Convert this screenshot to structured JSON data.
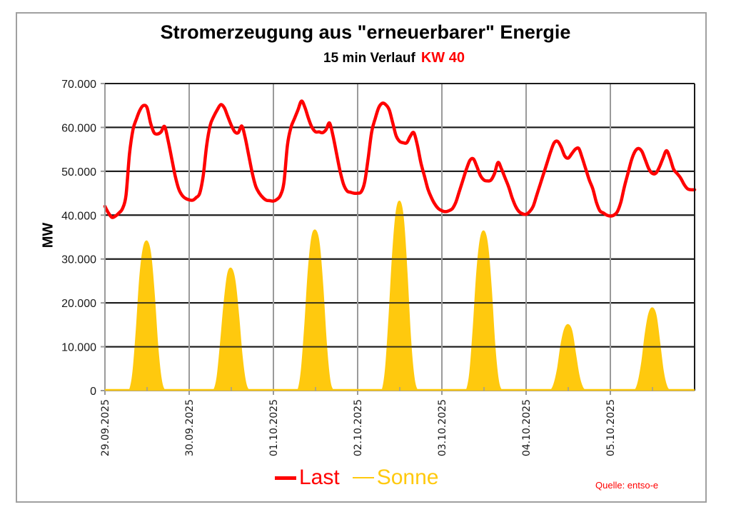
{
  "chart_data": {
    "type": "line",
    "title": "Stromerzeugung aus \"erneuerbarer\" Energie",
    "subtitle": "15 min Verlauf",
    "subtitle_highlight": "KW 40",
    "xlabel": "",
    "ylabel": "MW",
    "ylim": [
      0,
      70000
    ],
    "yticks": [
      0,
      10000,
      20000,
      30000,
      40000,
      50000,
      60000,
      70000
    ],
    "ytick_labels": [
      "0",
      "10.000",
      "20.000",
      "30.000",
      "40.000",
      "50.000",
      "60.000",
      "70.000"
    ],
    "xtick_labels": [
      "29.09.2025",
      "30.09.2025",
      "01.10.2025",
      "02.10.2025",
      "03.10.2025",
      "04.10.2025",
      "05.10.2025"
    ],
    "x_unit": "hours since 29.09.2025 00:00",
    "xlim": [
      0,
      168
    ],
    "grid": true,
    "legend_position": "bottom-center",
    "source_note": "Quelle: entso-e",
    "series": [
      {
        "name": "Last",
        "color": "#ff0000",
        "kind": "line",
        "hourly_values": [
          42000,
          40500,
          39500,
          39800,
          40500,
          41500,
          44500,
          54000,
          59500,
          62000,
          64000,
          65000,
          64500,
          61000,
          58800,
          58500,
          59000,
          60200,
          57000,
          53000,
          49000,
          46000,
          44500,
          43800,
          43500,
          43400,
          44000,
          45000,
          49000,
          56000,
          60500,
          62500,
          64000,
          65200,
          64500,
          62500,
          60500,
          59000,
          58800,
          60300,
          57500,
          53500,
          49500,
          46500,
          45000,
          44000,
          43400,
          43300,
          43200,
          43600,
          44500,
          47500,
          56000,
          60000,
          62000,
          64000,
          66000,
          64500,
          62000,
          60000,
          59000,
          59000,
          58800,
          59500,
          61000,
          58000,
          54000,
          50000,
          47000,
          45500,
          45200,
          45000,
          45000,
          45300,
          47500,
          53000,
          59000,
          62000,
          64500,
          65500,
          65200,
          64000,
          61000,
          58000,
          56800,
          56500,
          56500,
          58000,
          58800,
          56000,
          52000,
          49000,
          46000,
          44000,
          42500,
          41500,
          41000,
          40800,
          41000,
          41500,
          43000,
          45500,
          48000,
          50500,
          52500,
          52800,
          51000,
          49000,
          48000,
          47800,
          48000,
          49500,
          52000,
          50500,
          48500,
          46500,
          44000,
          42000,
          40800,
          40300,
          40200,
          40800,
          42000,
          44500,
          47000,
          49500,
          52000,
          54500,
          56500,
          56800,
          55500,
          53500,
          53000,
          54000,
          55000,
          55200,
          53000,
          50500,
          48000,
          46000,
          43000,
          41000,
          40500,
          40000,
          39800,
          40000,
          40800,
          43000,
          46500,
          49500,
          52500,
          54500,
          55200,
          54500,
          52500,
          50500,
          49500,
          49600,
          51000,
          53000,
          54700,
          53000,
          50500,
          49500,
          48500,
          47000,
          46000,
          45800,
          45800
        ]
      },
      {
        "name": "Sonne",
        "color": "#ffc90e",
        "kind": "area",
        "peaks_by_day": [
          34000,
          27800,
          36500,
          43100,
          36300,
          15000,
          18800
        ],
        "hourly_values": [
          0,
          0,
          0,
          0,
          0,
          0,
          0,
          0,
          4000,
          14000,
          26000,
          32500,
          34000,
          31000,
          22000,
          10000,
          2500,
          0,
          0,
          0,
          0,
          0,
          0,
          0,
          0,
          0,
          0,
          0,
          0,
          0,
          0,
          0,
          3000,
          11000,
          20000,
          26500,
          27800,
          25000,
          17500,
          8000,
          2000,
          0,
          0,
          0,
          0,
          0,
          0,
          0,
          0,
          0,
          0,
          0,
          0,
          0,
          0,
          0,
          4500,
          15000,
          27500,
          35000,
          36500,
          33500,
          24000,
          11000,
          2500,
          0,
          0,
          0,
          0,
          0,
          0,
          0,
          0,
          0,
          0,
          0,
          0,
          0,
          0,
          0,
          5000,
          17000,
          31000,
          40500,
          43100,
          39000,
          27000,
          12000,
          3000,
          0,
          0,
          0,
          0,
          0,
          0,
          0,
          0,
          0,
          0,
          0,
          0,
          0,
          0,
          0,
          4000,
          14500,
          27000,
          34500,
          36300,
          33000,
          23500,
          10500,
          2500,
          0,
          0,
          0,
          0,
          0,
          0,
          0,
          0,
          0,
          0,
          0,
          0,
          0,
          0,
          0,
          1500,
          5000,
          10500,
          14000,
          15000,
          13500,
          8500,
          3500,
          800,
          0,
          0,
          0,
          0,
          0,
          0,
          0,
          0,
          0,
          0,
          0,
          0,
          0,
          0,
          0,
          2000,
          6500,
          13000,
          17500,
          18800,
          17000,
          11000,
          4500,
          1000,
          0,
          0,
          0,
          0,
          0,
          0,
          0,
          0
        ]
      }
    ]
  }
}
